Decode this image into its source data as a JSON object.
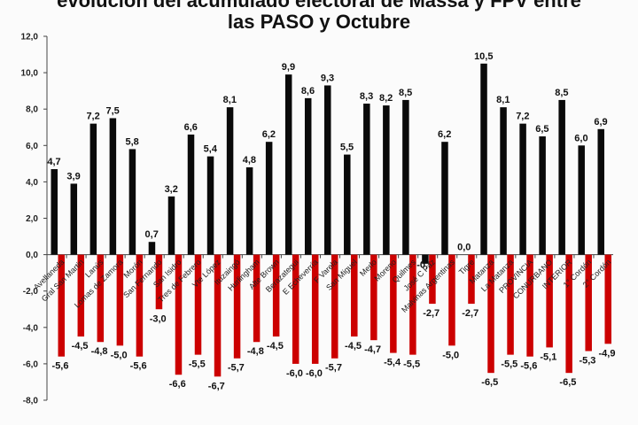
{
  "chart_data": {
    "type": "bar",
    "title_lines": [
      "evolución del acumulado electoral de Massa y FPV entre",
      "las PASO y Octubre"
    ],
    "xlabel": "",
    "ylabel": "",
    "ylim": [
      -8.0,
      12.0
    ],
    "yticks": [
      "12,0",
      "10,0",
      "8,0",
      "6,0",
      "4,0",
      "2,0",
      "0,0",
      "-2,0",
      "-4,0",
      "-6,0",
      "-8,0"
    ],
    "grid": false,
    "legend": "none",
    "colors": {
      "series_a": "#0a0a0a",
      "series_b": "#cc0000",
      "axis": "#444444"
    },
    "categories": [
      "Avellaneda",
      "Gral San Martin",
      "Lanús",
      "Lomas de Zamora",
      "Morón",
      "San Fernando",
      "San Isidro",
      "Tres de Febrero",
      "Vte López",
      "Ituzaingó",
      "Hurlingham",
      "Alte Brown",
      "Berazategui",
      "E Echeverría",
      "F Varela",
      "San Miguel",
      "Merlo",
      "Moreno",
      "Quilmes",
      "José C Paz",
      "Malvinas Argentinas",
      "Tigre",
      "Matanza",
      "La Matanza",
      "PROVINCIA",
      "CONURBANO",
      "INTERIOR",
      "1° Cordón",
      "2° Cordón"
    ],
    "category_labels": [
      "Avellaneda",
      "Gral San Martin",
      "Lanús",
      "Lomas de Zamora",
      "Morón",
      "San Fernando",
      "San Isidro",
      "Tres de Febrero",
      "Vte López",
      "Ituzaingó",
      "Hurlingham",
      "Alte Brown",
      "Berazategui",
      "E Echeverría",
      "F Varela",
      "San Miguel",
      "Merlo",
      "Moreno",
      "Quilmes",
      "José C Paz",
      "Malvinas Argentinas",
      "Tigre",
      "Matanza",
      "La Matanza",
      "PROVINCIA",
      "CONURBANO",
      "INTERIOR",
      "1° Cordón",
      "2° Cordón"
    ],
    "series": [
      {
        "values": [
          4.7,
          3.9,
          7.2,
          7.5,
          5.8,
          0.7,
          3.2,
          6.6,
          5.4,
          8.1,
          4.8,
          6.2,
          9.9,
          8.6,
          9.3,
          5.5,
          8.3,
          8.2,
          8.5,
          -0.5,
          6.2,
          0.0,
          10.5,
          8.1,
          7.2,
          6.5,
          8.5,
          6.0,
          6.9
        ],
        "labels": [
          "4,7",
          "3,9",
          "7,2",
          "7,5",
          "5,8",
          "0,7",
          "3,2",
          "6,6",
          "5,4",
          "8,1",
          "4,8",
          "6,2",
          "9,9",
          "8,6",
          "9,3",
          "5,5",
          "8,3",
          "8,2",
          "8,5",
          "-0,5",
          "6,2",
          "0,0",
          "10,5",
          "8,1",
          "7,2",
          "6,5",
          "8,5",
          "6,0",
          "6,9"
        ]
      },
      {
        "values": [
          -5.6,
          -4.5,
          -4.8,
          -5.0,
          -5.6,
          -3.0,
          -6.6,
          -5.5,
          -6.7,
          -5.7,
          -4.8,
          -4.5,
          -6.0,
          -6.0,
          -5.7,
          -4.5,
          -4.7,
          -5.4,
          -5.5,
          -2.7,
          -5.0,
          -2.7,
          -6.5,
          -5.5,
          -5.6,
          -5.1,
          -6.5,
          -5.3,
          -4.9
        ],
        "labels": [
          "-5,6",
          "-4,5",
          "-4,8",
          "-5,0",
          "-5,6",
          "-3,0",
          "-6,6",
          "-5,5",
          "-6,7",
          "-5,7",
          "-4,8",
          "-4,5",
          "-6,0",
          "-6,0",
          "-5,7",
          "-4,5",
          "-4,7",
          "-5,4",
          "-5,5",
          "-2,7",
          "-5,0",
          "-2,7",
          "-6,5",
          "-5,5",
          "-5,6",
          "-5,1",
          "-6,5",
          "-5,3",
          "-4,9"
        ]
      }
    ]
  }
}
